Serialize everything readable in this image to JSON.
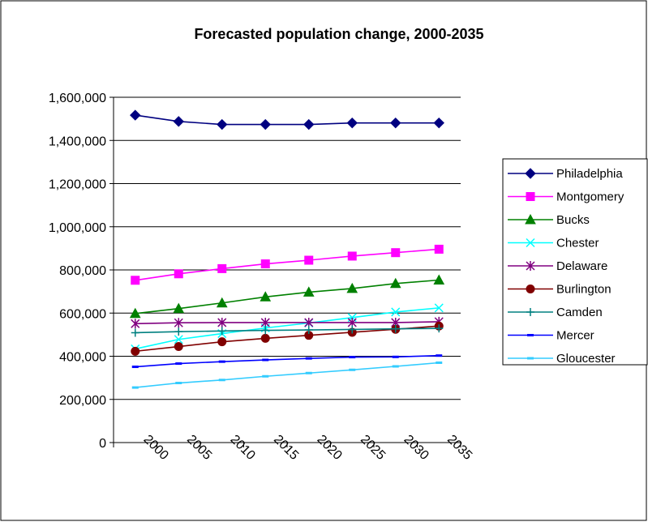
{
  "chart_data": {
    "type": "line",
    "title": "Forecasted population change, 2000-2035",
    "xlabel": "",
    "ylabel": "",
    "categories": [
      "2000",
      "2005",
      "2010",
      "2015",
      "2020",
      "2025",
      "2030",
      "2035"
    ],
    "ylim": [
      0,
      1600000
    ],
    "yticks": [
      0,
      200000,
      400000,
      600000,
      800000,
      1000000,
      1200000,
      1400000,
      1600000
    ],
    "ytick_labels": [
      "0",
      "200,000",
      "400,000",
      "600,000",
      "800,000",
      "1,000,000",
      "1,200,000",
      "1,400,000",
      "1,600,000"
    ],
    "grid": true,
    "legend_position": "right",
    "series": [
      {
        "name": "Philadelphia",
        "color": "#000080",
        "marker": "diamond",
        "values": [
          1517000,
          1488000,
          1474000,
          1474000,
          1474000,
          1481000,
          1481000,
          1481000
        ]
      },
      {
        "name": "Montgomery",
        "color": "#FF00FF",
        "marker": "square",
        "values": [
          752000,
          782000,
          806000,
          828000,
          845000,
          864000,
          880000,
          896000
        ]
      },
      {
        "name": "Bucks",
        "color": "#008000",
        "marker": "triangle",
        "values": [
          598000,
          621000,
          647000,
          675000,
          697000,
          714000,
          737000,
          753000
        ]
      },
      {
        "name": "Chester",
        "color": "#00FFFF",
        "marker": "x",
        "values": [
          434000,
          478000,
          505000,
          531000,
          554000,
          579000,
          605000,
          624000
        ]
      },
      {
        "name": "Delaware",
        "color": "#800080",
        "marker": "star",
        "values": [
          551000,
          555000,
          556000,
          556000,
          556000,
          556000,
          556000,
          560000
        ]
      },
      {
        "name": "Burlington",
        "color": "#800000",
        "marker": "circle",
        "values": [
          423000,
          445000,
          467000,
          483000,
          497000,
          511000,
          525000,
          540000
        ]
      },
      {
        "name": "Camden",
        "color": "#008080",
        "marker": "plus",
        "values": [
          509000,
          514000,
          517000,
          520000,
          522000,
          524000,
          527000,
          529000
        ]
      },
      {
        "name": "Mercer",
        "color": "#0000FF",
        "marker": "dash",
        "values": [
          351000,
          366000,
          375000,
          383000,
          390000,
          396000,
          397000,
          403000
        ]
      },
      {
        "name": "Gloucester",
        "color": "#33CCFF",
        "marker": "dash",
        "values": [
          255000,
          276000,
          290000,
          307000,
          322000,
          337000,
          353000,
          370000
        ]
      }
    ]
  }
}
